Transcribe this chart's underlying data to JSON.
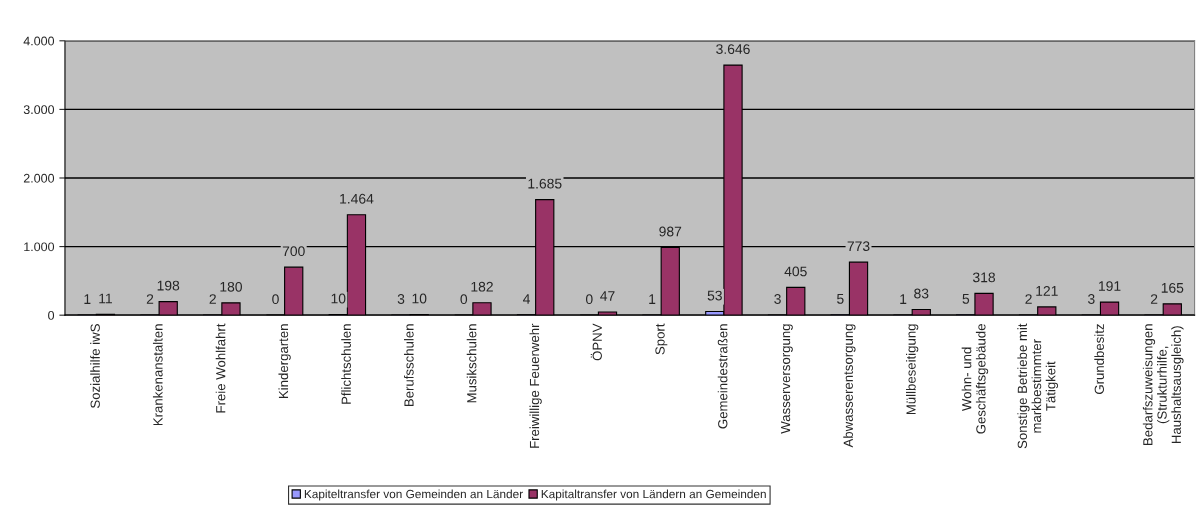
{
  "chart_data": {
    "type": "bar",
    "categories": [
      "Sozialhilfe iwS",
      "Krankenanstalten",
      "Freie Wohlfahrt",
      "Kindergarten",
      "Pflichtschulen",
      "Berufsschulen",
      "Musikschulen",
      "Freiwillige Feuerwehr",
      "ÖPNV",
      "Sport",
      "Gemeindestraßen",
      "Wasserversorgung",
      "Abwasserentsorgung",
      "Müllbeseitigung",
      "Wohn- und Geschäftsgebäude",
      "Sonstige Betriebe mit markbestimmter Tätigkeit",
      "Grundbesitz",
      "Bedarfszuweisungen (Strukturhilfe, Haushaltsausgleich)"
    ],
    "series": [
      {
        "name": "Kapiteltransfer von Gemeinden an Länder",
        "color": "#9999ff",
        "values": [
          1,
          2,
          2,
          0,
          10,
          3,
          0,
          4,
          0,
          1,
          53,
          3,
          5,
          1,
          5,
          2,
          3,
          2
        ]
      },
      {
        "name": "Kapitaltransfer von Ländern an Gemeinden",
        "color": "#993366",
        "values": [
          11,
          198,
          180,
          700,
          1464,
          10,
          182,
          1685,
          47,
          987,
          3646,
          405,
          773,
          83,
          318,
          121,
          191,
          165
        ],
        "value_labels": [
          "11",
          "198",
          "180",
          "700",
          "1.464",
          "10",
          "182",
          "1.685",
          "47",
          "987",
          "3.646",
          "405",
          "773",
          "83",
          "318",
          "121",
          "191",
          "165"
        ]
      }
    ],
    "ylim": [
      0,
      4000
    ],
    "yticks": [
      0,
      {
        "value": 1000,
        "label": "1.000"
      },
      {
        "value": 2000,
        "label": "2.000"
      },
      {
        "value": 3000,
        "label": "3.000"
      },
      {
        "value": 4000,
        "label": "4.000"
      }
    ],
    "grid": "y",
    "legend": "bottom",
    "data_labels": true
  }
}
